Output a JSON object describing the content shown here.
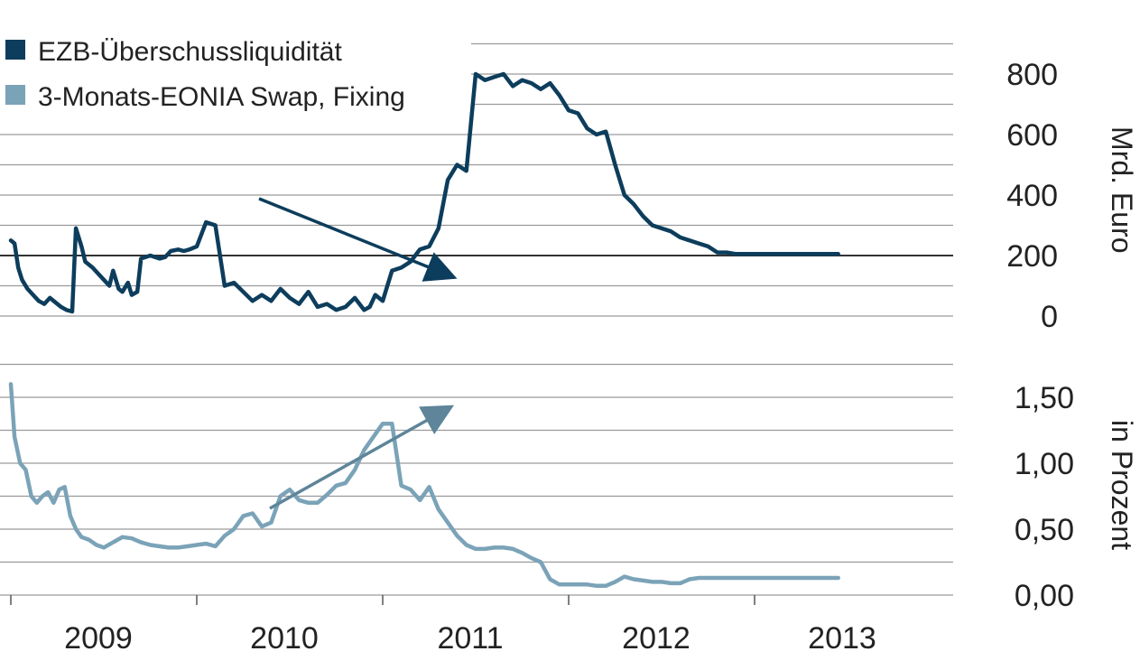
{
  "colors": {
    "liquidity": "#0d3d5c",
    "eonia": "#7ba3b8",
    "arrow_liquidity": "#0d3d5c",
    "arrow_eonia": "#5e8599"
  },
  "chart_data": [
    {
      "type": "line",
      "title": "",
      "xlabel": "",
      "ylabel": "Mrd. Euro",
      "ylim": [
        0,
        900
      ],
      "y_ticks": [
        "0",
        "200",
        "400",
        "600",
        "800"
      ],
      "x_ticks": [
        "2009",
        "2010",
        "2011",
        "2012",
        "2013"
      ],
      "highlight_line": 200,
      "legend_position": "top-left",
      "grid": true,
      "series": [
        {
          "name": "EZB-Überschussliquidität",
          "color": "#0d3d5c",
          "x": [
            2009.0,
            2009.02,
            2009.04,
            2009.06,
            2009.09,
            2009.12,
            2009.15,
            2009.18,
            2009.21,
            2009.24,
            2009.27,
            2009.3,
            2009.33,
            2009.35,
            2009.38,
            2009.4,
            2009.44,
            2009.47,
            2009.5,
            2009.53,
            2009.55,
            2009.58,
            2009.6,
            2009.63,
            2009.65,
            2009.68,
            2009.7,
            2009.75,
            2009.8,
            2009.83,
            2009.86,
            2009.9,
            2009.93,
            2009.96,
            2010.0,
            2010.05,
            2010.1,
            2010.15,
            2010.2,
            2010.25,
            2010.3,
            2010.35,
            2010.4,
            2010.45,
            2010.5,
            2010.55,
            2010.6,
            2010.65,
            2010.7,
            2010.75,
            2010.8,
            2010.85,
            2010.9,
            2010.93,
            2010.96,
            2011.0,
            2011.05,
            2011.1,
            2011.15,
            2011.2,
            2011.25,
            2011.3,
            2011.35,
            2011.4,
            2011.45,
            2011.5,
            2011.55,
            2011.6,
            2011.65,
            2011.7,
            2011.75,
            2011.8,
            2011.85,
            2011.9,
            2011.95,
            2012.0,
            2012.05,
            2012.1,
            2012.15,
            2012.2,
            2012.25,
            2012.3,
            2012.35,
            2012.4,
            2012.45,
            2012.5,
            2012.55,
            2012.6,
            2012.65,
            2012.7,
            2012.75,
            2012.8,
            2012.85,
            2012.9,
            2012.95,
            2013.0,
            2013.05,
            2013.1,
            2013.15,
            2013.2,
            2013.25,
            2013.3,
            2013.35,
            2013.4,
            2013.45
          ],
          "values": [
            250,
            240,
            160,
            120,
            90,
            70,
            50,
            40,
            60,
            45,
            30,
            20,
            15,
            290,
            230,
            180,
            160,
            140,
            120,
            100,
            150,
            90,
            80,
            110,
            70,
            80,
            190,
            200,
            190,
            195,
            215,
            220,
            215,
            220,
            230,
            310,
            300,
            100,
            110,
            80,
            50,
            70,
            50,
            90,
            60,
            40,
            80,
            30,
            40,
            20,
            30,
            60,
            20,
            30,
            70,
            50,
            150,
            160,
            180,
            220,
            230,
            290,
            450,
            500,
            480,
            800,
            780,
            790,
            800,
            760,
            780,
            770,
            750,
            770,
            730,
            680,
            670,
            620,
            600,
            610,
            500,
            400,
            370,
            330,
            300,
            290,
            280,
            260,
            250,
            240,
            230,
            210,
            210,
            205,
            205,
            205,
            205,
            205,
            205,
            205,
            205,
            205,
            205,
            205,
            205
          ]
        }
      ]
    },
    {
      "type": "line",
      "title": "",
      "xlabel": "",
      "ylabel": "in Prozent",
      "ylim": [
        0,
        1.75
      ],
      "y_ticks": [
        "0,00",
        "0,50",
        "1,00",
        "1,50"
      ],
      "x_ticks": [
        "2009",
        "2010",
        "2011",
        "2012",
        "2013"
      ],
      "legend_position": "top-left",
      "grid": true,
      "series": [
        {
          "name": "3-Monats-EONIA Swap, Fixing",
          "color": "#7ba3b8",
          "x": [
            2009.0,
            2009.02,
            2009.05,
            2009.08,
            2009.11,
            2009.14,
            2009.17,
            2009.2,
            2009.23,
            2009.26,
            2009.29,
            2009.32,
            2009.35,
            2009.38,
            2009.42,
            2009.46,
            2009.5,
            2009.55,
            2009.6,
            2009.65,
            2009.7,
            2009.75,
            2009.8,
            2009.85,
            2009.9,
            2009.95,
            2010.0,
            2010.05,
            2010.1,
            2010.15,
            2010.2,
            2010.25,
            2010.3,
            2010.35,
            2010.4,
            2010.45,
            2010.5,
            2010.55,
            2010.6,
            2010.65,
            2010.7,
            2010.75,
            2010.8,
            2010.85,
            2010.9,
            2010.95,
            2011.0,
            2011.05,
            2011.1,
            2011.15,
            2011.2,
            2011.25,
            2011.3,
            2011.35,
            2011.4,
            2011.45,
            2011.5,
            2011.55,
            2011.6,
            2011.65,
            2011.7,
            2011.75,
            2011.8,
            2011.85,
            2011.9,
            2011.95,
            2012.0,
            2012.05,
            2012.1,
            2012.15,
            2012.2,
            2012.25,
            2012.3,
            2012.35,
            2012.4,
            2012.45,
            2012.5,
            2012.55,
            2012.6,
            2012.65,
            2012.7,
            2012.75,
            2012.8,
            2012.85,
            2012.9,
            2012.95,
            2013.0,
            2013.05,
            2013.1,
            2013.15,
            2013.2,
            2013.25,
            2013.3,
            2013.35,
            2013.4,
            2013.45
          ],
          "values": [
            1.6,
            1.2,
            1.0,
            0.95,
            0.75,
            0.7,
            0.75,
            0.78,
            0.7,
            0.8,
            0.82,
            0.6,
            0.5,
            0.44,
            0.42,
            0.38,
            0.36,
            0.4,
            0.44,
            0.43,
            0.4,
            0.38,
            0.37,
            0.36,
            0.36,
            0.37,
            0.38,
            0.39,
            0.37,
            0.45,
            0.5,
            0.6,
            0.62,
            0.52,
            0.55,
            0.75,
            0.8,
            0.72,
            0.7,
            0.7,
            0.76,
            0.83,
            0.85,
            0.95,
            1.1,
            1.2,
            1.3,
            1.3,
            0.83,
            0.8,
            0.72,
            0.82,
            0.65,
            0.55,
            0.45,
            0.38,
            0.35,
            0.35,
            0.36,
            0.36,
            0.35,
            0.32,
            0.28,
            0.25,
            0.12,
            0.08,
            0.08,
            0.08,
            0.08,
            0.07,
            0.07,
            0.1,
            0.14,
            0.12,
            0.11,
            0.1,
            0.1,
            0.09,
            0.09,
            0.12,
            0.13,
            0.13,
            0.13,
            0.13,
            0.13,
            0.13,
            0.13,
            0.13,
            0.13,
            0.13,
            0.13,
            0.13,
            0.13,
            0.13,
            0.13,
            0.13
          ]
        }
      ]
    }
  ]
}
